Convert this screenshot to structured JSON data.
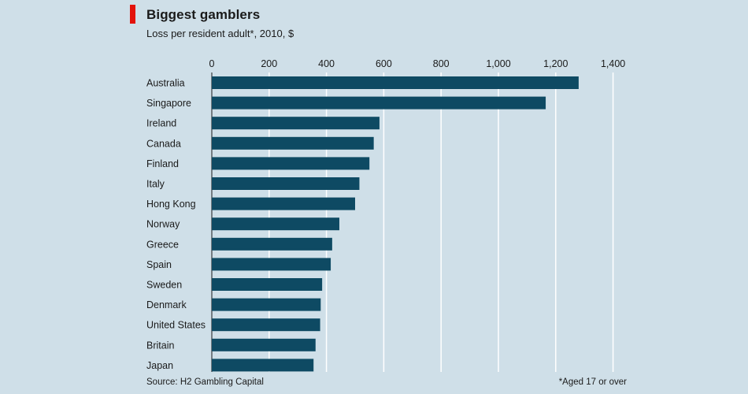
{
  "header": {
    "title": "Biggest gamblers",
    "subtitle": "Loss per resident adult*, 2010, $",
    "accent_color": "#e3120b"
  },
  "footer": {
    "source": "Source: H2 Gambling Capital",
    "footnote": "*Aged 17 or over"
  },
  "colors": {
    "bar": "#0e4a63",
    "grid": "#ffffff",
    "background": "#cfdfe8"
  },
  "chart_data": {
    "type": "bar",
    "orientation": "horizontal",
    "title": "Biggest gamblers",
    "subtitle": "Loss per resident adult*, 2010, $",
    "xlim": [
      0,
      1400
    ],
    "ticks": [
      0,
      200,
      400,
      600,
      800,
      1000,
      1200,
      1400
    ],
    "tick_labels": [
      "0",
      "200",
      "400",
      "600",
      "800",
      "1,000",
      "1,200",
      "1,400"
    ],
    "axis_position": "top",
    "grid": true,
    "categories": [
      "Australia",
      "Singapore",
      "Ireland",
      "Canada",
      "Finland",
      "Italy",
      "Hong Kong",
      "Norway",
      "Greece",
      "Spain",
      "Sweden",
      "Denmark",
      "United States",
      "Britain",
      "Japan"
    ],
    "values": [
      1280,
      1165,
      585,
      565,
      550,
      515,
      500,
      445,
      420,
      415,
      385,
      380,
      378,
      362,
      355
    ]
  }
}
